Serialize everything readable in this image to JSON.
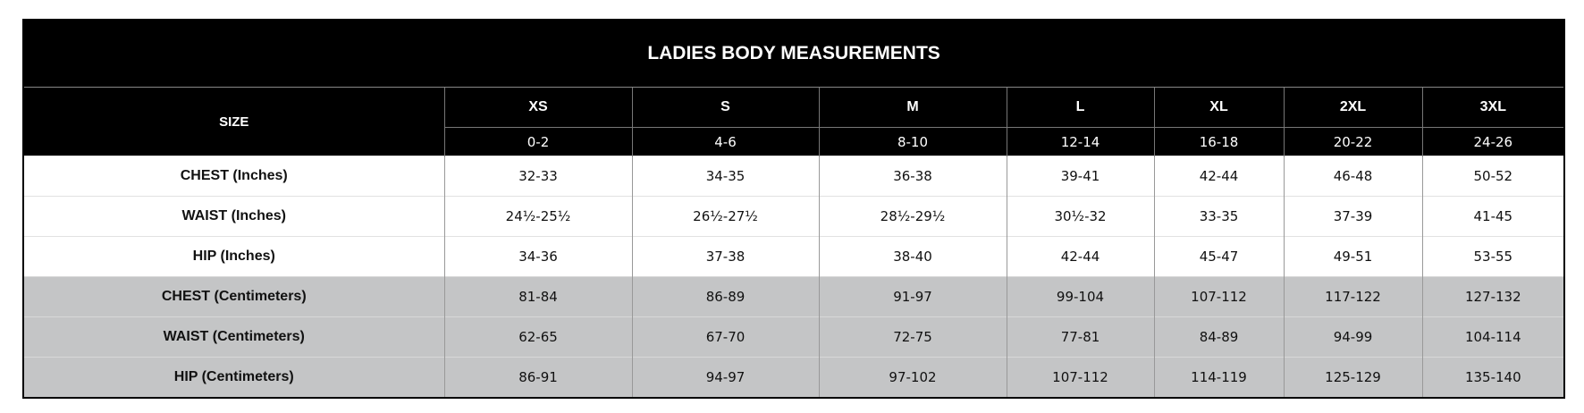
{
  "table": {
    "title": "LADIES BODY MEASUREMENTS",
    "size_label": "SIZE",
    "sizes": [
      {
        "label": "XS",
        "range": "0-2"
      },
      {
        "label": "S",
        "range": "4-6"
      },
      {
        "label": "M",
        "range": "8-10"
      },
      {
        "label": "L",
        "range": "12-14"
      },
      {
        "label": "XL",
        "range": "16-18"
      },
      {
        "label": "2XL",
        "range": "20-22"
      },
      {
        "label": "3XL",
        "range": "24-26"
      }
    ],
    "rows": [
      {
        "label": "CHEST (Inches)",
        "values": [
          "32-33",
          "34-35",
          "36-38",
          "39-41",
          "42-44",
          "46-48",
          "50-52"
        ]
      },
      {
        "label": "WAIST (Inches)",
        "values": [
          "24½-25½",
          "26½-27½",
          "28½-29½",
          "30½-32",
          "33-35",
          "37-39",
          "41-45"
        ]
      },
      {
        "label": "HIP (Inches)",
        "values": [
          "34-36",
          "37-38",
          "38-40",
          "42-44",
          "45-47",
          "49-51",
          "53-55"
        ]
      },
      {
        "label": "CHEST (Centimeters)",
        "values": [
          "81-84",
          "86-89",
          "91-97",
          "99-104",
          "107-112",
          "117-122",
          "127-132"
        ]
      },
      {
        "label": "WAIST (Centimeters)",
        "values": [
          "62-65",
          "67-70",
          "72-75",
          "77-81",
          "84-89",
          "94-99",
          "104-114"
        ]
      },
      {
        "label": "HIP (Centimeters)",
        "values": [
          "86-91",
          "94-97",
          "97-102",
          "107-112",
          "114-119",
          "125-129",
          "135-140"
        ]
      }
    ]
  }
}
